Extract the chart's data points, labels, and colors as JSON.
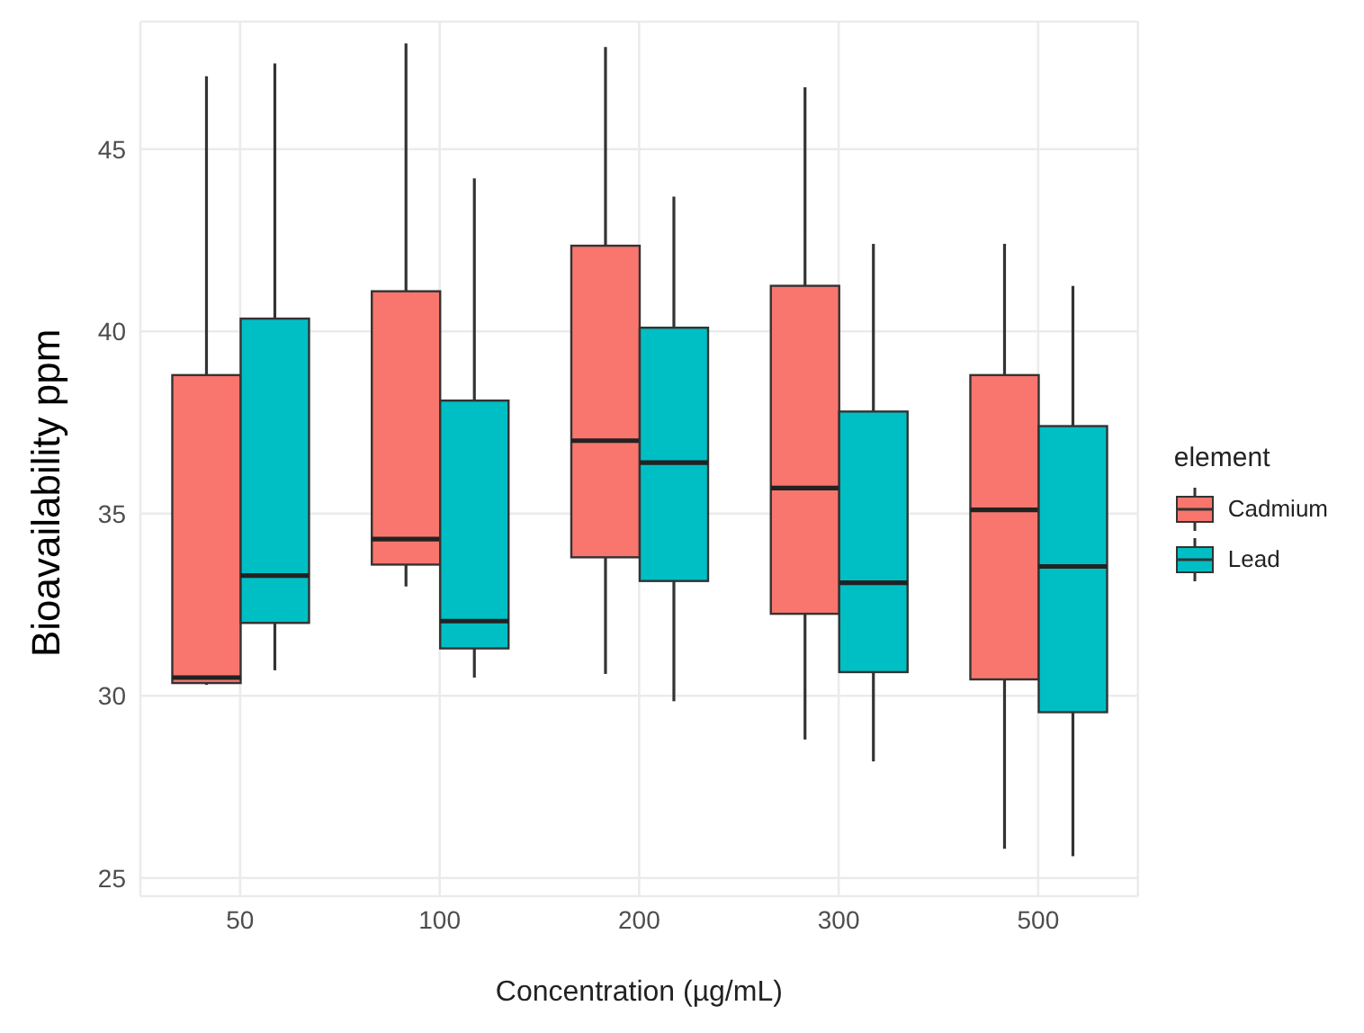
{
  "chart_data": {
    "type": "box",
    "xlabel": "Concentration (µg/mL)",
    "ylabel": "Bioavailability ppm",
    "legend_title": "element",
    "legend": "right",
    "grid": true,
    "categories": [
      "50",
      "100",
      "200",
      "300",
      "500"
    ],
    "ylim": [
      24.5,
      48.5
    ],
    "yticks": [
      25,
      30,
      35,
      40,
      45
    ],
    "series": [
      {
        "name": "Cadmium",
        "color": "#f8766d",
        "boxes": [
          {
            "low": 30.3,
            "q1": 30.35,
            "median": 30.5,
            "q3": 38.8,
            "high": 47.0
          },
          {
            "low": 33.0,
            "q1": 33.6,
            "median": 34.3,
            "q3": 41.1,
            "high": 47.9
          },
          {
            "low": 30.6,
            "q1": 33.8,
            "median": 37.0,
            "q3": 42.35,
            "high": 47.8
          },
          {
            "low": 28.8,
            "q1": 32.25,
            "median": 35.7,
            "q3": 41.25,
            "high": 46.7
          },
          {
            "low": 25.8,
            "q1": 30.45,
            "median": 35.1,
            "q3": 38.8,
            "high": 42.4
          }
        ]
      },
      {
        "name": "Lead",
        "color": "#00bfc4",
        "boxes": [
          {
            "low": 30.7,
            "q1": 32.0,
            "median": 33.3,
            "q3": 40.35,
            "high": 47.35
          },
          {
            "low": 30.5,
            "q1": 31.3,
            "median": 32.05,
            "q3": 38.1,
            "high": 44.2
          },
          {
            "low": 29.85,
            "q1": 33.15,
            "median": 36.4,
            "q3": 40.1,
            "high": 43.7
          },
          {
            "low": 28.2,
            "q1": 30.65,
            "median": 33.1,
            "q3": 37.8,
            "high": 42.4
          },
          {
            "low": 25.6,
            "q1": 29.55,
            "median": 33.55,
            "q3": 37.4,
            "high": 41.25
          }
        ]
      }
    ]
  }
}
